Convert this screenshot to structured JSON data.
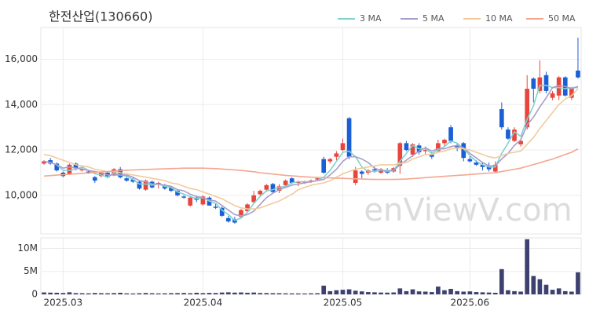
{
  "chart_data": [
    {
      "type": "candlestick",
      "title": "한전산업(130660)",
      "watermark": "enViewV.com",
      "up_color": "#e8453c",
      "down_color": "#1a5fd6",
      "grid": true,
      "legend": "top-right",
      "ylim": [
        8300,
        17400
      ],
      "yticks": [
        {
          "value": 10000,
          "label": "10,000"
        },
        {
          "value": 12000,
          "label": "12,000"
        },
        {
          "value": 14000,
          "label": "14,000"
        },
        {
          "value": 16000,
          "label": "16,000"
        }
      ],
      "ohlc": [
        [
          11400,
          11550,
          11350,
          11500
        ],
        [
          11550,
          11650,
          11350,
          11400
        ],
        [
          11400,
          11450,
          11050,
          11100
        ],
        [
          11000,
          11050,
          10800,
          10850
        ],
        [
          10950,
          11400,
          10900,
          11350
        ],
        [
          11400,
          11450,
          11100,
          11200
        ],
        [
          11100,
          11250,
          11050,
          11150
        ],
        [
          11050,
          11100,
          10950,
          11000
        ],
        [
          10800,
          10850,
          10550,
          10650
        ],
        [
          10850,
          11050,
          10800,
          11000
        ],
        [
          11000,
          11050,
          10750,
          10800
        ],
        [
          10900,
          11200,
          10850,
          11150
        ],
        [
          11150,
          11250,
          10750,
          10800
        ],
        [
          10750,
          10850,
          10600,
          10650
        ],
        [
          10700,
          10800,
          10550,
          10600
        ],
        [
          10600,
          10650,
          10250,
          10300
        ],
        [
          10250,
          10700,
          10200,
          10650
        ],
        [
          10600,
          10650,
          10300,
          10350
        ],
        [
          10500,
          10600,
          10300,
          10550
        ],
        [
          10450,
          10500,
          10250,
          10300
        ],
        [
          10350,
          10400,
          10150,
          10200
        ],
        [
          10200,
          10250,
          9950,
          10000
        ],
        [
          9950,
          10000,
          9850,
          9900
        ],
        [
          9550,
          9950,
          9500,
          9900
        ],
        [
          9900,
          9950,
          9700,
          9800
        ],
        [
          9600,
          10000,
          9550,
          9950
        ],
        [
          9900,
          9950,
          9550,
          9550
        ],
        [
          9500,
          9650,
          9400,
          9450
        ],
        [
          9450,
          9500,
          9050,
          9100
        ],
        [
          9000,
          9100,
          8800,
          8850
        ],
        [
          8950,
          9050,
          8750,
          8800
        ],
        [
          9050,
          9400,
          9000,
          9350
        ],
        [
          9300,
          9650,
          9250,
          9600
        ],
        [
          9700,
          10200,
          9650,
          10000
        ],
        [
          10050,
          10250,
          9950,
          10200
        ],
        [
          10250,
          10500,
          10150,
          10450
        ],
        [
          10500,
          10550,
          10100,
          10150
        ],
        [
          10200,
          10500,
          10100,
          10400
        ],
        [
          10450,
          10700,
          10400,
          10650
        ],
        [
          10750,
          10800,
          10500,
          10550
        ],
        [
          10550,
          10650,
          10400,
          10600
        ],
        [
          10550,
          10650,
          10500,
          10600
        ],
        [
          10600,
          10700,
          10550,
          10650
        ],
        [
          10700,
          10800,
          10650,
          10750
        ],
        [
          11600,
          11700,
          10950,
          11000
        ],
        [
          11500,
          11650,
          11400,
          11600
        ],
        [
          11700,
          11950,
          11550,
          11850
        ],
        [
          12000,
          12500,
          11950,
          12300
        ],
        [
          13400,
          13450,
          11600,
          11700
        ],
        [
          10550,
          11250,
          10450,
          11100
        ],
        [
          11050,
          11100,
          10750,
          10950
        ],
        [
          11000,
          11150,
          10900,
          11100
        ],
        [
          11150,
          11250,
          11000,
          11100
        ],
        [
          11000,
          11200,
          10950,
          11150
        ],
        [
          11100,
          11200,
          10950,
          11000
        ],
        [
          11050,
          11250,
          11000,
          11200
        ],
        [
          11300,
          12350,
          10950,
          12300
        ],
        [
          12300,
          12400,
          11950,
          12000
        ],
        [
          11800,
          12300,
          11700,
          12250
        ],
        [
          12200,
          12300,
          11800,
          11900
        ],
        [
          11950,
          12150,
          11800,
          12000
        ],
        [
          11800,
          11900,
          11600,
          11700
        ],
        [
          11950,
          12450,
          11900,
          12300
        ],
        [
          12300,
          12500,
          12150,
          12450
        ],
        [
          13000,
          13100,
          12300,
          12400
        ],
        [
          12200,
          12300,
          11950,
          12100
        ],
        [
          12300,
          12350,
          11500,
          11650
        ],
        [
          11600,
          11750,
          11450,
          11500
        ],
        [
          11450,
          11550,
          11300,
          11350
        ],
        [
          11350,
          11450,
          11100,
          11250
        ],
        [
          11300,
          11450,
          11050,
          11150
        ],
        [
          11050,
          11500,
          11000,
          11350
        ],
        [
          13800,
          14100,
          12900,
          13000
        ],
        [
          12900,
          13000,
          12450,
          12500
        ],
        [
          12400,
          13000,
          12350,
          12900
        ],
        [
          12250,
          12500,
          12150,
          12400
        ],
        [
          13000,
          15300,
          12900,
          14700
        ],
        [
          15150,
          15200,
          14100,
          14700
        ],
        [
          14600,
          15950,
          14500,
          15200
        ],
        [
          15300,
          15450,
          14500,
          14600
        ],
        [
          14300,
          14600,
          14200,
          14500
        ],
        [
          14400,
          15250,
          14200,
          15200
        ],
        [
          15200,
          15250,
          14350,
          14400
        ],
        [
          14300,
          14700,
          14200,
          14700
        ],
        [
          15500,
          16950,
          15150,
          15200
        ]
      ],
      "series": [
        {
          "name": "3 MA",
          "color": "#7fd3d0",
          "values": [
            11500,
            11450,
            11350,
            11100,
            11100,
            11150,
            11250,
            11100,
            10950,
            10900,
            10800,
            11000,
            10900,
            10850,
            10700,
            10500,
            10500,
            10450,
            10500,
            10400,
            10350,
            10150,
            10050,
            9950,
            9850,
            9900,
            9750,
            9650,
            9350,
            9150,
            8900,
            9000,
            9250,
            9650,
            9950,
            10200,
            10250,
            10350,
            10400,
            10550,
            10600,
            10600,
            10600,
            10650,
            10800,
            11100,
            11500,
            11900,
            11950,
            11700,
            11250,
            11050,
            11050,
            11100,
            11100,
            11100,
            11500,
            11850,
            12200,
            12050,
            12050,
            11850,
            12000,
            12150,
            12400,
            12300,
            12050,
            11750,
            11500,
            11350,
            11250,
            11250,
            11850,
            12300,
            12800,
            12600,
            13350,
            13950,
            14850,
            14850,
            14750,
            14750,
            14700,
            14750,
            14750
          ]
        },
        {
          "name": "5 MA",
          "color": "#a99dcb",
          "values": [
            11500,
            11450,
            11350,
            11200,
            11250,
            11200,
            11150,
            11100,
            11050,
            11000,
            10900,
            10900,
            10900,
            10900,
            10800,
            10650,
            10600,
            10500,
            10500,
            10450,
            10400,
            10250,
            10200,
            10050,
            9950,
            9900,
            9800,
            9750,
            9550,
            9350,
            9150,
            9100,
            9150,
            9300,
            9600,
            9900,
            10100,
            10250,
            10350,
            10450,
            10500,
            10550,
            10600,
            10650,
            10700,
            10900,
            11150,
            11500,
            11700,
            11700,
            11600,
            11450,
            11200,
            11100,
            11050,
            11100,
            11350,
            11550,
            11750,
            11950,
            12100,
            11950,
            12050,
            12050,
            12150,
            12200,
            12100,
            11850,
            11650,
            11450,
            11300,
            11300,
            11600,
            11850,
            12200,
            12450,
            13100,
            13450,
            13900,
            14300,
            14750,
            14850,
            14800,
            14700,
            14800
          ]
        },
        {
          "name": "10 MA",
          "color": "#f1cb9c",
          "values": [
            11800,
            11750,
            11650,
            11550,
            11450,
            11350,
            11300,
            11250,
            11150,
            11100,
            11050,
            11050,
            11000,
            10950,
            10900,
            10850,
            10800,
            10750,
            10700,
            10650,
            10550,
            10500,
            10400,
            10300,
            10250,
            10150,
            10050,
            9950,
            9850,
            9700,
            9550,
            9450,
            9400,
            9400,
            9450,
            9550,
            9650,
            9750,
            9900,
            10050,
            10250,
            10350,
            10450,
            10500,
            10550,
            10650,
            10800,
            10950,
            11050,
            11150,
            11200,
            11250,
            11300,
            11350,
            11350,
            11350,
            11400,
            11450,
            11600,
            11700,
            11800,
            11800,
            11900,
            11950,
            12050,
            12100,
            12050,
            12000,
            11900,
            11800,
            11700,
            11650,
            11750,
            11850,
            11900,
            11950,
            12250,
            12550,
            12950,
            13300,
            13650,
            14000,
            14250,
            14400,
            14700
          ]
        },
        {
          "name": "50 MA",
          "color": "#f4a68f",
          "values": [
            10850,
            10870,
            10890,
            10910,
            10930,
            10950,
            10970,
            10990,
            11010,
            11030,
            11050,
            11070,
            11090,
            11110,
            11120,
            11130,
            11140,
            11150,
            11160,
            11170,
            11180,
            11190,
            11200,
            11200,
            11200,
            11200,
            11190,
            11180,
            11160,
            11140,
            11120,
            11100,
            11070,
            11040,
            11000,
            10970,
            10940,
            10910,
            10880,
            10860,
            10840,
            10820,
            10800,
            10790,
            10780,
            10770,
            10760,
            10750,
            10740,
            10730,
            10720,
            10710,
            10700,
            10700,
            10700,
            10700,
            10710,
            10720,
            10740,
            10760,
            10780,
            10800,
            10820,
            10840,
            10860,
            10880,
            10900,
            10920,
            10940,
            10960,
            10980,
            11000,
            11050,
            11100,
            11150,
            11200,
            11280,
            11360,
            11440,
            11520,
            11600,
            11700,
            11800,
            11900,
            12050
          ]
        }
      ]
    },
    {
      "type": "bar",
      "color": "#3d4170",
      "grid": true,
      "ylim": [
        0,
        12300000
      ],
      "yticks": [
        0,
        {
          "value": 5000000,
          "label": "5M"
        },
        {
          "value": 10000000,
          "label": "10M"
        }
      ],
      "xticks": [
        {
          "value": 3,
          "label": "2025.03"
        },
        {
          "value": 25,
          "label": "2025.04"
        },
        {
          "value": 47,
          "label": "2025.05"
        },
        {
          "value": 67,
          "label": "2025.06"
        }
      ],
      "values": [
        420000,
        380000,
        350000,
        300000,
        450000,
        280000,
        250000,
        230000,
        300000,
        260000,
        240000,
        280000,
        350000,
        220000,
        200000,
        250000,
        300000,
        240000,
        210000,
        230000,
        260000,
        280000,
        300000,
        250000,
        350000,
        270000,
        320000,
        300000,
        400000,
        450000,
        380000,
        420000,
        350000,
        400000,
        300000,
        280000,
        260000,
        250000,
        230000,
        220000,
        210000,
        200000,
        230000,
        250000,
        1900000,
        700000,
        900000,
        1000000,
        1100000,
        800000,
        650000,
        500000,
        450000,
        400000,
        380000,
        420000,
        1300000,
        700000,
        1100000,
        650000,
        600000,
        500000,
        1700000,
        900000,
        1200000,
        700000,
        600000,
        650000,
        500000,
        450000,
        400000,
        350000,
        5500000,
        900000,
        700000,
        600000,
        12000000,
        4000000,
        3300000,
        2100000,
        1000000,
        1300000,
        700000,
        600000,
        4800000
      ]
    }
  ]
}
